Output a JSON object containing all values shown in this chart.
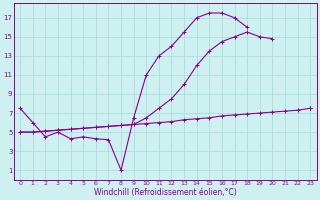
{
  "xlabel": "Windchill (Refroidissement éolien,°C)",
  "background_color": "#cff0f0",
  "line_color": "#880088",
  "grid_color": "#aadddd",
  "xlim": [
    -0.5,
    23.5
  ],
  "ylim": [
    0,
    18.5
  ],
  "yticks": [
    1,
    3,
    5,
    7,
    9,
    11,
    13,
    15,
    17
  ],
  "xticks": [
    0,
    1,
    2,
    3,
    4,
    5,
    6,
    7,
    8,
    9,
    10,
    11,
    12,
    13,
    14,
    15,
    16,
    17,
    18,
    19,
    20,
    21,
    22,
    23
  ],
  "curve1_x": [
    0,
    1,
    2,
    3,
    4,
    5,
    6,
    7,
    8,
    9,
    10,
    11,
    12,
    13,
    14,
    15,
    16,
    17,
    18,
    19,
    20,
    21,
    22,
    23
  ],
  "curve1_y": [
    7.5,
    6.0,
    4.5,
    5.0,
    4.3,
    4.5,
    4.3,
    4.2,
    1.0,
    6.5,
    11.0,
    13.0,
    14.0,
    15.5,
    17.0,
    17.5,
    17.5,
    17.0,
    16.0,
    null,
    null,
    null,
    null,
    7.5
  ],
  "curve2_x": [
    0,
    1,
    2,
    3,
    4,
    5,
    6,
    7,
    8,
    9,
    10,
    11,
    12,
    13,
    14,
    15,
    16,
    17,
    18,
    19,
    20,
    21,
    22,
    23
  ],
  "curve2_y": [
    5.0,
    5.0,
    5.1,
    5.2,
    5.3,
    5.4,
    5.5,
    5.6,
    5.7,
    5.8,
    5.9,
    6.0,
    6.1,
    6.3,
    6.4,
    6.5,
    6.7,
    6.8,
    6.9,
    7.0,
    7.1,
    7.2,
    7.3,
    7.5
  ],
  "curve3_x": [
    0,
    1,
    2,
    3,
    4,
    5,
    6,
    7,
    8,
    9,
    10,
    11,
    12,
    13,
    14,
    15,
    16,
    17,
    18,
    19,
    20,
    21,
    22,
    23
  ],
  "curve3_y": [
    5.0,
    5.0,
    5.1,
    5.2,
    5.3,
    5.4,
    5.5,
    5.6,
    5.7,
    5.8,
    6.5,
    7.5,
    8.5,
    10.0,
    12.0,
    13.5,
    14.5,
    15.0,
    15.5,
    15.0,
    14.8,
    null,
    null,
    7.5
  ]
}
